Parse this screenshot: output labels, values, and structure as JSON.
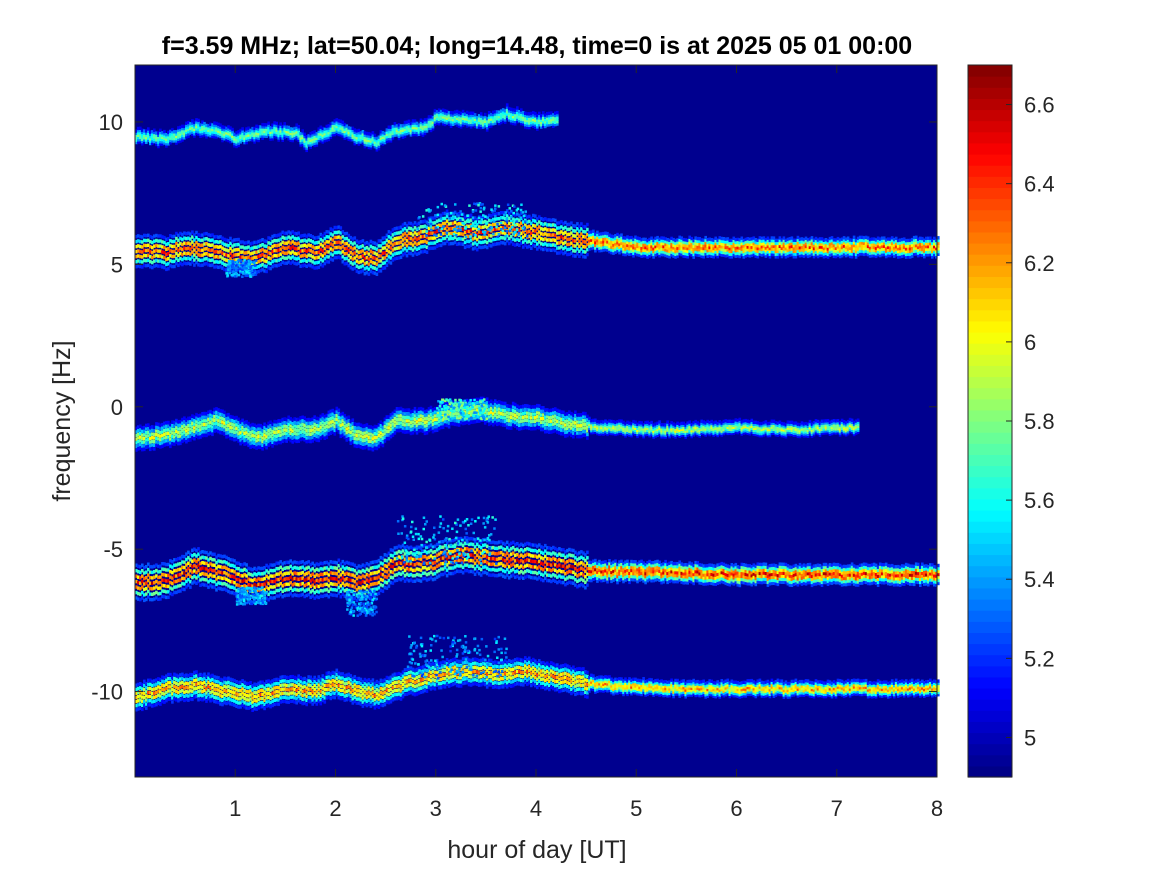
{
  "chart_data": {
    "type": "heatmap",
    "title": "f=3.59 MHz;  lat=50.04; long=14.48, time=0 is at 2025 05 01 00:00",
    "xlabel": "hour of day [UT]",
    "ylabel": "frequency [Hz]",
    "xlim": [
      0,
      8
    ],
    "ylim": [
      -13,
      12
    ],
    "x_ticks": [
      1,
      2,
      3,
      4,
      5,
      6,
      7,
      8
    ],
    "y_ticks": [
      -10,
      -5,
      0,
      5,
      10
    ],
    "colorbar": {
      "colormap": "jet",
      "limits": [
        4.9,
        6.7
      ],
      "ticks": [
        5,
        5.2,
        5.4,
        5.6,
        5.8,
        6,
        6.2,
        6.4,
        6.6
      ],
      "tick_labels": [
        "5",
        "5.2",
        "5.4",
        "5.6",
        "5.8",
        "6",
        "6.2",
        "6.4",
        "6.6"
      ]
    },
    "background_color": "#00008f",
    "grid": false,
    "traces": [
      {
        "points": [
          [
            0.0,
            9.5
          ],
          [
            0.3,
            9.4
          ],
          [
            0.6,
            9.8
          ],
          [
            0.9,
            9.6
          ],
          [
            1.0,
            9.4
          ],
          [
            1.3,
            9.7
          ],
          [
            1.6,
            9.6
          ],
          [
            1.7,
            9.3
          ],
          [
            2.0,
            9.8
          ],
          [
            2.2,
            9.5
          ],
          [
            2.4,
            9.3
          ],
          [
            2.6,
            9.7
          ],
          [
            2.9,
            9.8
          ],
          [
            3.0,
            10.2
          ],
          [
            3.2,
            10.1
          ],
          [
            3.5,
            10.0
          ],
          [
            3.7,
            10.3
          ],
          [
            4.0,
            10.0
          ],
          [
            4.2,
            10.1
          ]
        ],
        "x_end": 4.2,
        "intensity": 5.85,
        "spread": 0.25
      },
      {
        "points": [
          [
            0.0,
            5.5
          ],
          [
            0.3,
            5.4
          ],
          [
            0.5,
            5.6
          ],
          [
            0.7,
            5.5
          ],
          [
            1.0,
            5.3
          ],
          [
            1.2,
            5.2
          ],
          [
            1.5,
            5.6
          ],
          [
            1.8,
            5.4
          ],
          [
            2.0,
            5.8
          ],
          [
            2.2,
            5.3
          ],
          [
            2.4,
            5.2
          ],
          [
            2.6,
            5.8
          ],
          [
            2.9,
            6.0
          ],
          [
            3.1,
            6.3
          ],
          [
            3.4,
            6.1
          ],
          [
            3.7,
            6.3
          ],
          [
            4.0,
            6.1
          ],
          [
            4.3,
            5.9
          ],
          [
            4.6,
            5.8
          ],
          [
            5.0,
            5.6
          ],
          [
            6.0,
            5.6
          ],
          [
            7.0,
            5.6
          ],
          [
            8.0,
            5.6
          ]
        ],
        "x_end": 8.0,
        "intensity": 6.45,
        "spread": 0.55
      },
      {
        "points": [
          [
            0.0,
            -1.1
          ],
          [
            0.3,
            -1.0
          ],
          [
            0.5,
            -0.8
          ],
          [
            0.8,
            -0.5
          ],
          [
            1.0,
            -0.8
          ],
          [
            1.2,
            -1.1
          ],
          [
            1.5,
            -0.8
          ],
          [
            1.8,
            -0.8
          ],
          [
            2.0,
            -0.5
          ],
          [
            2.2,
            -1.0
          ],
          [
            2.4,
            -1.1
          ],
          [
            2.6,
            -0.5
          ],
          [
            2.9,
            -0.5
          ],
          [
            3.1,
            -0.3
          ],
          [
            3.4,
            -0.1
          ],
          [
            3.7,
            -0.3
          ],
          [
            4.0,
            -0.4
          ],
          [
            4.3,
            -0.6
          ],
          [
            4.6,
            -0.7
          ],
          [
            5.0,
            -0.8
          ],
          [
            5.5,
            -0.8
          ],
          [
            6.0,
            -0.7
          ],
          [
            6.5,
            -0.8
          ],
          [
            7.2,
            -0.7
          ]
        ],
        "x_end": 7.2,
        "intensity": 6.0,
        "spread": 0.4
      },
      {
        "points": [
          [
            0.0,
            -6.2
          ],
          [
            0.3,
            -6.1
          ],
          [
            0.6,
            -5.6
          ],
          [
            0.9,
            -5.9
          ],
          [
            1.2,
            -6.3
          ],
          [
            1.5,
            -6.0
          ],
          [
            1.8,
            -6.1
          ],
          [
            2.0,
            -6.0
          ],
          [
            2.2,
            -6.2
          ],
          [
            2.4,
            -6.0
          ],
          [
            2.6,
            -5.5
          ],
          [
            2.9,
            -5.5
          ],
          [
            3.2,
            -5.2
          ],
          [
            3.5,
            -5.3
          ],
          [
            3.8,
            -5.4
          ],
          [
            4.1,
            -5.5
          ],
          [
            4.4,
            -5.7
          ],
          [
            4.8,
            -5.8
          ],
          [
            5.2,
            -5.8
          ],
          [
            6.0,
            -5.9
          ],
          [
            7.0,
            -5.9
          ],
          [
            8.0,
            -5.9
          ]
        ],
        "x_end": 8.0,
        "intensity": 6.55,
        "spread": 0.6
      },
      {
        "points": [
          [
            0.0,
            -10.2
          ],
          [
            0.3,
            -9.9
          ],
          [
            0.6,
            -9.8
          ],
          [
            0.9,
            -10.0
          ],
          [
            1.2,
            -10.2
          ],
          [
            1.5,
            -9.9
          ],
          [
            1.8,
            -10.0
          ],
          [
            2.0,
            -9.7
          ],
          [
            2.2,
            -10.0
          ],
          [
            2.4,
            -10.1
          ],
          [
            2.7,
            -9.7
          ],
          [
            3.0,
            -9.4
          ],
          [
            3.3,
            -9.3
          ],
          [
            3.6,
            -9.4
          ],
          [
            3.9,
            -9.3
          ],
          [
            4.2,
            -9.5
          ],
          [
            4.5,
            -9.7
          ],
          [
            4.8,
            -9.8
          ],
          [
            5.5,
            -9.9
          ],
          [
            6.5,
            -9.9
          ],
          [
            7.5,
            -9.9
          ],
          [
            8.0,
            -9.9
          ]
        ],
        "x_end": 8.0,
        "intensity": 6.3,
        "spread": 0.45
      }
    ],
    "bursts": [
      {
        "x": [
          2.6,
          3.6
        ],
        "y": [
          -5.5,
          -3.8
        ],
        "intensity": 5.6
      },
      {
        "x": [
          2.7,
          3.7
        ],
        "y": [
          -9.5,
          -8.0
        ],
        "intensity": 5.5
      },
      {
        "x": [
          2.8,
          3.9
        ],
        "y": [
          6.0,
          7.2
        ],
        "intensity": 5.6
      },
      {
        "x": [
          3.0,
          3.5
        ],
        "y": [
          -0.4,
          0.3
        ],
        "intensity": 5.8
      },
      {
        "x": [
          0.9,
          1.2
        ],
        "y": [
          4.6,
          5.2
        ],
        "intensity": 5.5
      },
      {
        "x": [
          2.1,
          2.4
        ],
        "y": [
          -7.3,
          -6.4
        ],
        "intensity": 5.5
      },
      {
        "x": [
          1.0,
          1.3
        ],
        "y": [
          -6.9,
          -6.3
        ],
        "intensity": 5.5
      }
    ]
  }
}
